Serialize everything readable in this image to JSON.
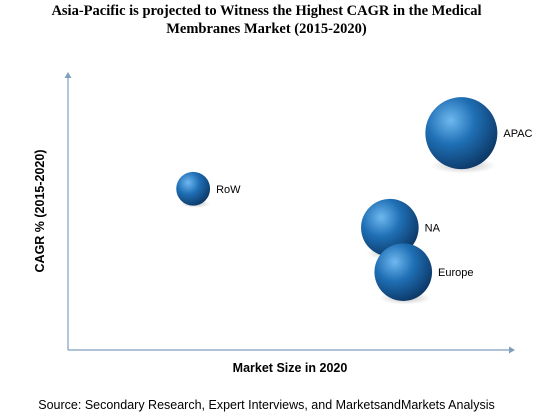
{
  "chart_data": {
    "type": "bubble",
    "title_line1": "Asia-Pacific is projected to Witness the Highest CAGR in the Medical",
    "title_line2": "Membranes Market (2015-2020)",
    "xlabel": "Market Size in 2020",
    "ylabel": "CAGR % (2015-2020)",
    "grid": false,
    "tick_labels": false,
    "colors": {
      "bubble_light": "#6fb8f0",
      "bubble_mid": "#1f6fb5",
      "bubble_dark": "#0b3461",
      "axis": "#7f9fbf"
    },
    "series": [
      {
        "name": "APAC",
        "x": 0.88,
        "y": 0.78,
        "size": 1.0
      },
      {
        "name": "RoW",
        "x": 0.28,
        "y": 0.58,
        "size": 0.47
      },
      {
        "name": "NA",
        "x": 0.72,
        "y": 0.44,
        "size": 0.8
      },
      {
        "name": "Europe",
        "x": 0.75,
        "y": 0.28,
        "size": 0.8
      }
    ]
  },
  "footer": {
    "source": "Source: Secondary Research, Expert Interviews, and MarketsandMarkets Analysis"
  }
}
